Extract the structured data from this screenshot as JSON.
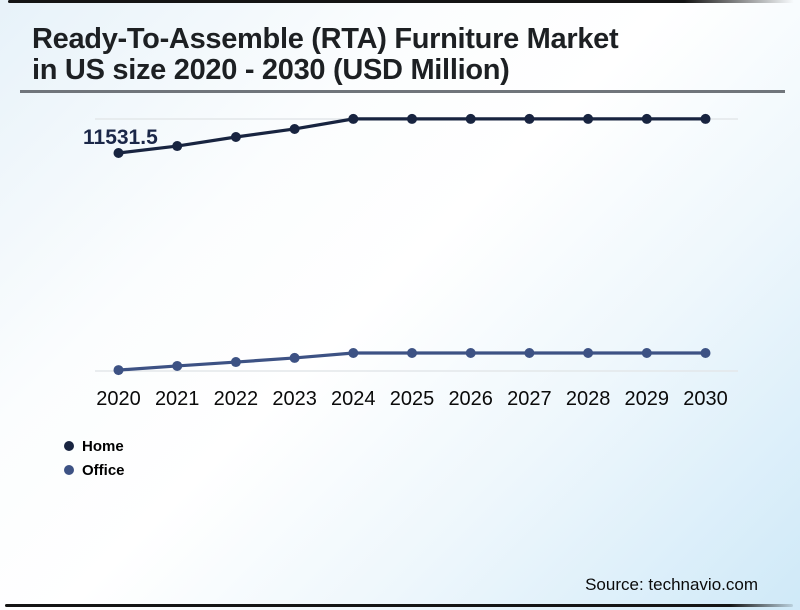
{
  "header": {
    "title_line1": "Ready-To-Assemble (RTA) Furniture Market",
    "title_line2": "in US size 2020 - 2030 (USD Million)"
  },
  "footer": {
    "source": "Source: technavio.com"
  },
  "colors": {
    "home_series": "#182440",
    "office_series": "#3d5284",
    "gridline": "#e3e7ea",
    "title_text": "#1d2023",
    "title_rule": "#70757b",
    "frame_border": "#141414",
    "data_label": "#1b2748"
  },
  "chart_data": {
    "type": "line",
    "title": "Ready-To-Assemble (RTA) Furniture Market in US size 2020 - 2030 (USD Million)",
    "xlabel": "",
    "ylabel": "USD Million",
    "categories": [
      "2020",
      "2021",
      "2022",
      "2023",
      "2024",
      "2025",
      "2026",
      "2027",
      "2028",
      "2029",
      "2030"
    ],
    "series": [
      {
        "name": "Home",
        "color": "#182440",
        "values": [
          11531.5,
          11870,
          12310,
          12700,
          13190,
          13190,
          13190,
          13190,
          13190,
          13190,
          13190
        ]
      },
      {
        "name": "Office",
        "color": "#3d5284",
        "values": [
          970,
          1170,
          1360,
          1560,
          1800,
          1800,
          1800,
          1800,
          1800,
          1800,
          1800
        ]
      }
    ],
    "data_labels": [
      {
        "series": "Home",
        "category": "2020",
        "text": "11531.5"
      }
    ],
    "ylim": [
      0,
      14350
    ],
    "grid": "partial-horizontal",
    "legend_position": "bottom-left"
  }
}
